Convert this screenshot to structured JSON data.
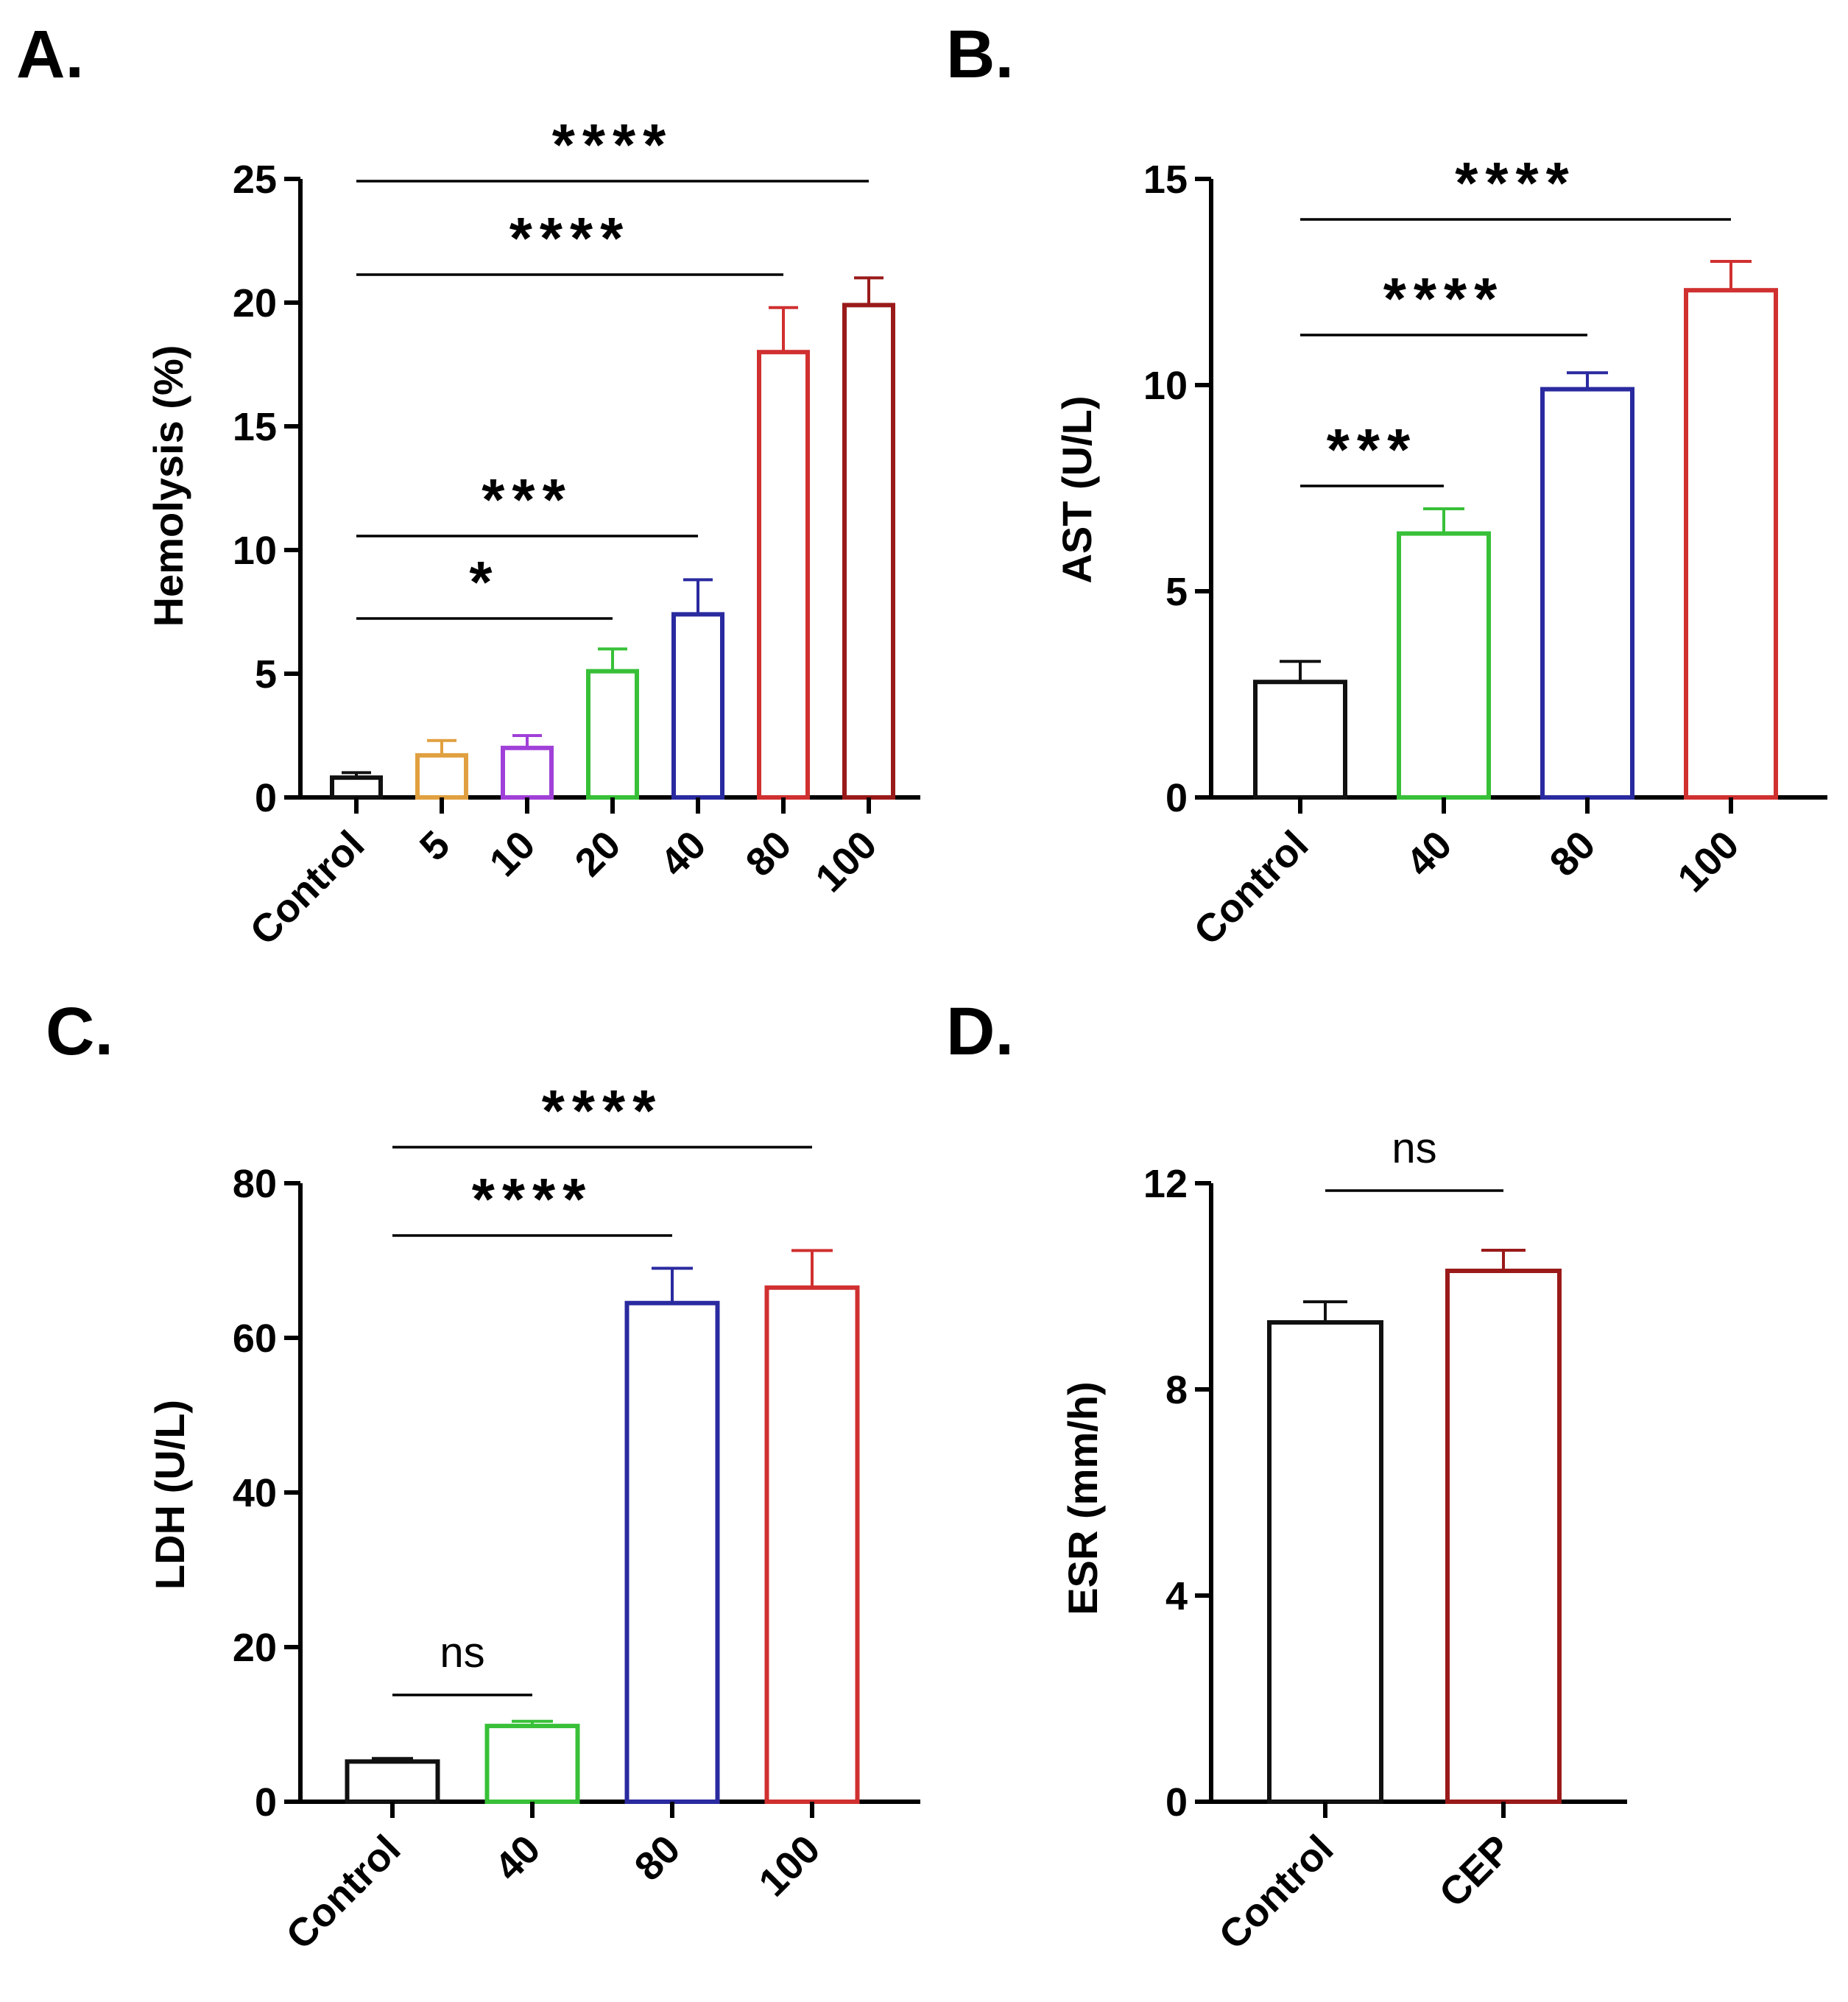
{
  "colors": {
    "black": "#111111",
    "orange": "#E0A040",
    "purple": "#A040D8",
    "green": "#38C038",
    "blue": "#2A2AA0",
    "red": "#D03030",
    "dark_red": "#9A1A1A"
  },
  "chart_data": [
    {
      "panel": "A.",
      "type": "bar",
      "ylabel": "Hemolysis (%)",
      "xlabel": "",
      "ylim": [
        0,
        25
      ],
      "yticks": [
        0,
        5,
        10,
        15,
        20,
        25
      ],
      "categories": [
        "Control",
        "5",
        "10",
        "20",
        "40",
        "80",
        "100"
      ],
      "values": [
        0.8,
        1.7,
        2.0,
        5.1,
        7.4,
        18.0,
        19.9
      ],
      "errors": [
        0.2,
        0.6,
        0.5,
        0.9,
        1.4,
        1.8,
        1.1
      ],
      "colors": [
        "#111111",
        "#E0A040",
        "#A040D8",
        "#38C038",
        "#2A2AA0",
        "#D03030",
        "#9A1A1A"
      ],
      "significance": [
        {
          "from": 0,
          "to": 3,
          "label": "*"
        },
        {
          "from": 0,
          "to": 4,
          "label": "***"
        },
        {
          "from": 0,
          "to": 5,
          "label": "****"
        },
        {
          "from": 0,
          "to": 6,
          "label": "****"
        }
      ]
    },
    {
      "panel": "B.",
      "type": "bar",
      "ylabel": "AST (U/L)",
      "xlabel": "",
      "ylim": [
        0,
        15
      ],
      "yticks": [
        0,
        5,
        10,
        15
      ],
      "categories": [
        "Control",
        "40",
        "80",
        "100"
      ],
      "values": [
        2.8,
        6.4,
        9.9,
        12.3
      ],
      "errors": [
        0.5,
        0.6,
        0.4,
        0.7
      ],
      "colors": [
        "#111111",
        "#38C038",
        "#2A2AA0",
        "#D03030"
      ],
      "significance": [
        {
          "from": 0,
          "to": 1,
          "label": "***"
        },
        {
          "from": 0,
          "to": 2,
          "label": "****"
        },
        {
          "from": 0,
          "to": 3,
          "label": "****"
        }
      ]
    },
    {
      "panel": "C.",
      "type": "bar",
      "ylabel": "LDH (U/L)",
      "xlabel": "",
      "ylim": [
        0,
        80
      ],
      "yticks": [
        0,
        20,
        40,
        60,
        80
      ],
      "categories": [
        "Control",
        "40",
        "80",
        "100"
      ],
      "values": [
        5.2,
        9.8,
        64.5,
        66.5
      ],
      "errors": [
        0.4,
        0.6,
        4.5,
        4.8
      ],
      "colors": [
        "#111111",
        "#38C038",
        "#2A2AA0",
        "#D03030"
      ],
      "significance": [
        {
          "from": 0,
          "to": 1,
          "label": "ns"
        },
        {
          "from": 0,
          "to": 2,
          "label": "****"
        },
        {
          "from": 0,
          "to": 3,
          "label": "****"
        }
      ]
    },
    {
      "panel": "D.",
      "type": "bar",
      "ylabel": "ESR (mm/h)",
      "xlabel": "",
      "ylim": [
        0,
        12
      ],
      "yticks": [
        0,
        4,
        8,
        12
      ],
      "categories": [
        "Control",
        "CEP"
      ],
      "values": [
        9.3,
        10.3
      ],
      "errors": [
        0.4,
        0.4
      ],
      "colors": [
        "#111111",
        "#9A1A1A"
      ],
      "significance": [
        {
          "from": 0,
          "to": 1,
          "label": "ns"
        }
      ]
    }
  ]
}
